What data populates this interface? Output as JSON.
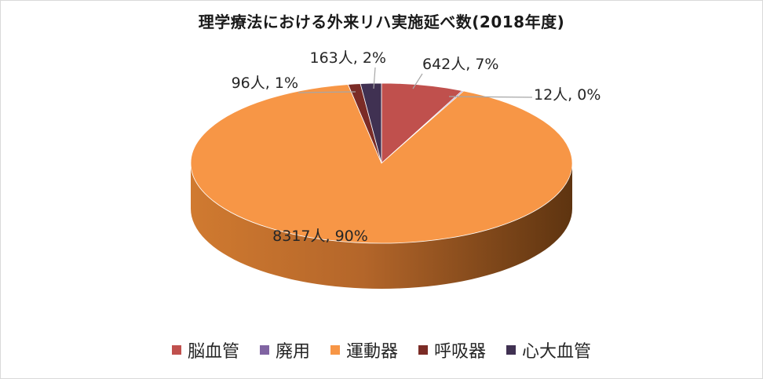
{
  "chart_data": {
    "type": "pie",
    "title": "理学療法における外来リハ実施延べ数(2018年度)",
    "slices": [
      {
        "name": "脳血管",
        "value": 642,
        "percent": 7,
        "label": "642人, 7%",
        "color": "#c0504d"
      },
      {
        "name": "廃用",
        "value": 12,
        "percent": 0,
        "label": "12人, 0%",
        "color": "#8064a2"
      },
      {
        "name": "運動器",
        "value": 8317,
        "percent": 90,
        "label": "8317人, 90%",
        "color": "#f79646"
      },
      {
        "name": "呼吸器",
        "value": 96,
        "percent": 1,
        "label": "96人, 1%",
        "color": "#7b2c26"
      },
      {
        "name": "心大血管",
        "value": 163,
        "percent": 2,
        "label": "163人, 2%",
        "color": "#403152"
      }
    ],
    "legend_position": "bottom"
  }
}
